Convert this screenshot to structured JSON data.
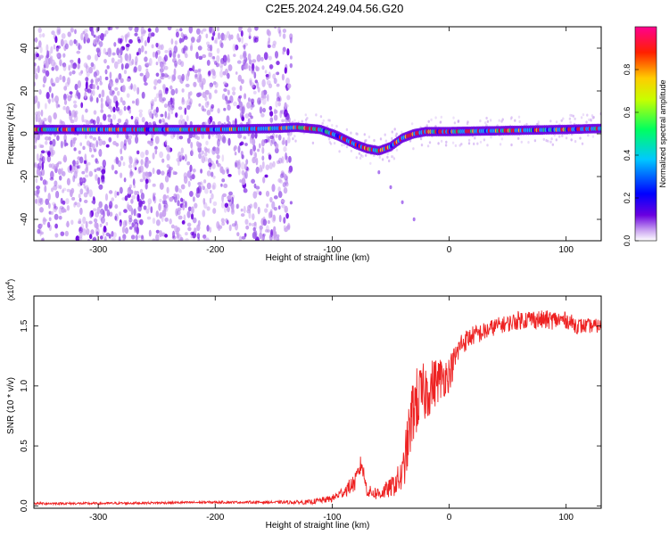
{
  "title": "C2E5.2024.249.04.56.G20",
  "colors": {
    "snr_line": "#ee2222",
    "axis": "#000000",
    "background": "#ffffff"
  },
  "chart_data": [
    {
      "type": "heatmap",
      "name": "spectrogram",
      "xlabel": "Height of straight line (km)",
      "ylabel": "Frequency (Hz)",
      "xlim": [
        -355,
        130
      ],
      "ylim": [
        -50,
        50
      ],
      "xticks": [
        -300,
        -200,
        -100,
        0,
        100
      ],
      "yticks": [
        -40,
        -20,
        0,
        20,
        40
      ],
      "colorbar": {
        "label": "Normalized spectral amplitude",
        "range": [
          0,
          1
        ],
        "ticks": [
          "0.0",
          "0.2",
          "0.4",
          "0.6",
          "0.8"
        ],
        "tick_values": [
          0.0,
          0.2,
          0.4,
          0.6,
          0.8
        ],
        "colormap": [
          "#ffffff",
          "#c8a0f0",
          "#6a00e0",
          "#0000ff",
          "#00c8ff",
          "#00ff60",
          "#c8ff00",
          "#ffcc00",
          "#ff2000",
          "#ff0090"
        ]
      },
      "ridge": {
        "x": [
          -355,
          -300,
          -250,
          -200,
          -150,
          -130,
          -110,
          -95,
          -80,
          -70,
          -60,
          -50,
          -40,
          -30,
          -20,
          0,
          50,
          100,
          130
        ],
        "y": [
          2,
          2,
          2,
          2,
          2.5,
          3,
          2,
          -1,
          -5,
          -7,
          -8,
          -6,
          -2,
          0,
          1,
          1,
          1.5,
          2,
          2.5
        ]
      },
      "tail": {
        "x": [
          -60,
          -50,
          -40,
          -30
        ],
        "y": [
          -18,
          -25,
          -32,
          -40
        ]
      },
      "noise_cutoff_x": -135
    },
    {
      "type": "line",
      "name": "snr",
      "xlabel": "Height of straight line (km)",
      "ylabel": "SNR (10 * v/v)",
      "y_multiplier": "(x10",
      "y_multiplier_exp": "4",
      "y_multiplier_close": ")",
      "xlim": [
        -355,
        130
      ],
      "ylim": [
        -0.02,
        1.75
      ],
      "xticks": [
        -300,
        -200,
        -100,
        0,
        100
      ],
      "yticks": [
        "0.0",
        "0.5",
        "1.0",
        "1.5"
      ],
      "ytick_values": [
        0.0,
        0.5,
        1.0,
        1.5
      ],
      "series": [
        {
          "x": [
            -355,
            -300,
            -200,
            -150,
            -120,
            -100,
            -90,
            -80,
            -75,
            -70,
            -60,
            -50,
            -40,
            -35,
            -30,
            -20,
            -10,
            0,
            10,
            20,
            30,
            40,
            50,
            60,
            70,
            80,
            90,
            100,
            110,
            120,
            130
          ],
          "values": [
            0.02,
            0.02,
            0.03,
            0.03,
            0.03,
            0.06,
            0.12,
            0.2,
            0.36,
            0.12,
            0.1,
            0.15,
            0.25,
            0.55,
            0.85,
            0.95,
            1.05,
            1.1,
            1.35,
            1.42,
            1.45,
            1.5,
            1.52,
            1.55,
            1.56,
            1.55,
            1.55,
            1.55,
            1.5,
            1.5,
            1.5
          ],
          "noise_amp": [
            0.01,
            0.01,
            0.01,
            0.01,
            0.02,
            0.03,
            0.05,
            0.08,
            0.08,
            0.05,
            0.06,
            0.08,
            0.15,
            0.25,
            0.3,
            0.25,
            0.2,
            0.15,
            0.1,
            0.08,
            0.08,
            0.07,
            0.07,
            0.08,
            0.08,
            0.08,
            0.08,
            0.07,
            0.07,
            0.06,
            0.06
          ]
        }
      ]
    }
  ]
}
